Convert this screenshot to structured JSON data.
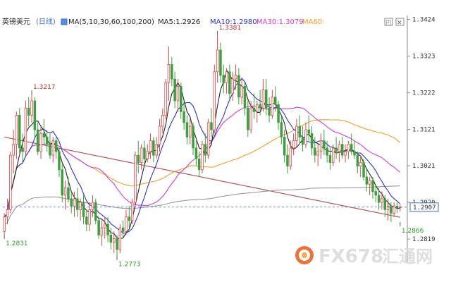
{
  "header": {
    "symbol": "英镑美元",
    "period": "(日线)",
    "indicator": "MA(5,10,30,60,100,200)",
    "ma5": "MA5:1.2926",
    "ma10": "MA10:1.2980",
    "ma30": "MA30:1.3079",
    "ma60": "MA60:"
  },
  "toolbar": {
    "restore_glyph": "◰",
    "close_glyph": "✕"
  },
  "watermark": {
    "brand": "FX678",
    "cn": "汇通网"
  },
  "colors": {
    "up": "#e04848",
    "down": "#3f9f3f",
    "ma5": "#222222",
    "ma10": "#2b35c8",
    "ma30": "#d040d0",
    "ma60": "#f0a030",
    "ma100": "#999999",
    "ma200": "#b05050",
    "dashed": "#3b6bd0",
    "label_high": "#c03030",
    "label_low": "#2f9a2f"
  },
  "chart_data": {
    "type": "candlestick",
    "ylim": [
      1.2755,
      1.3435
    ],
    "yticks": [
      "1.3424",
      "1.3323",
      "1.3222",
      "1.3121",
      "1.3021",
      "1.2920",
      "1.2819"
    ],
    "last_price": "1.2907",
    "annotations": [
      {
        "text": "1.3217",
        "bar": 9,
        "price": 1.3217,
        "kind": "high"
      },
      {
        "text": "1.3381",
        "bar": 70,
        "price": 1.3381,
        "kind": "high"
      },
      {
        "text": "1.2831",
        "bar": 0,
        "price": 1.2831,
        "kind": "low"
      },
      {
        "text": "1.2773",
        "bar": 37,
        "price": 1.2773,
        "kind": "low"
      },
      {
        "text": "1.2866",
        "bar": 130,
        "price": 1.2866,
        "kind": "low"
      }
    ],
    "candles": [
      [
        1.284,
        1.289,
        1.2831,
        1.288
      ],
      [
        1.288,
        1.293,
        1.286,
        1.29
      ],
      [
        1.29,
        1.306,
        1.289,
        1.305
      ],
      [
        1.305,
        1.312,
        1.3,
        1.308
      ],
      [
        1.308,
        1.317,
        1.304,
        1.316
      ],
      [
        1.316,
        1.318,
        1.305,
        1.307
      ],
      [
        1.307,
        1.311,
        1.303,
        1.306
      ],
      [
        1.306,
        1.32,
        1.305,
        1.318
      ],
      [
        1.318,
        1.321,
        1.313,
        1.316
      ],
      [
        1.316,
        1.3217,
        1.314,
        1.32
      ],
      [
        1.32,
        1.321,
        1.31,
        1.312
      ],
      [
        1.312,
        1.314,
        1.305,
        1.306
      ],
      [
        1.306,
        1.313,
        1.304,
        1.311
      ],
      [
        1.311,
        1.315,
        1.308,
        1.31
      ],
      [
        1.31,
        1.312,
        1.306,
        1.308
      ],
      [
        1.308,
        1.311,
        1.304,
        1.305
      ],
      [
        1.305,
        1.31,
        1.303,
        1.309
      ],
      [
        1.309,
        1.31,
        1.304,
        1.306
      ],
      [
        1.306,
        1.307,
        1.299,
        1.301
      ],
      [
        1.301,
        1.303,
        1.292,
        1.294
      ],
      [
        1.294,
        1.298,
        1.29,
        1.296
      ],
      [
        1.296,
        1.299,
        1.292,
        1.293
      ],
      [
        1.293,
        1.295,
        1.289,
        1.291
      ],
      [
        1.291,
        1.295,
        1.288,
        1.293
      ],
      [
        1.293,
        1.296,
        1.288,
        1.29
      ],
      [
        1.29,
        1.293,
        1.287,
        1.292
      ],
      [
        1.292,
        1.294,
        1.286,
        1.288
      ],
      [
        1.288,
        1.29,
        1.284,
        1.286
      ],
      [
        1.286,
        1.292,
        1.284,
        1.29
      ],
      [
        1.29,
        1.294,
        1.288,
        1.292
      ],
      [
        1.292,
        1.293,
        1.286,
        1.287
      ],
      [
        1.287,
        1.288,
        1.282,
        1.283
      ],
      [
        1.283,
        1.287,
        1.28,
        1.285
      ],
      [
        1.285,
        1.288,
        1.282,
        1.286
      ],
      [
        1.286,
        1.288,
        1.281,
        1.283
      ],
      [
        1.283,
        1.285,
        1.279,
        1.281
      ],
      [
        1.281,
        1.284,
        1.278,
        1.282
      ],
      [
        1.282,
        1.283,
        1.2773,
        1.279
      ],
      [
        1.279,
        1.286,
        1.278,
        1.285
      ],
      [
        1.285,
        1.287,
        1.282,
        1.284
      ],
      [
        1.284,
        1.29,
        1.283,
        1.288
      ],
      [
        1.288,
        1.291,
        1.285,
        1.287
      ],
      [
        1.287,
        1.293,
        1.286,
        1.292
      ],
      [
        1.292,
        1.306,
        1.291,
        1.305
      ],
      [
        1.305,
        1.309,
        1.3,
        1.303
      ],
      [
        1.303,
        1.308,
        1.301,
        1.307
      ],
      [
        1.307,
        1.309,
        1.302,
        1.304
      ],
      [
        1.304,
        1.308,
        1.303,
        1.306
      ],
      [
        1.306,
        1.311,
        1.304,
        1.309
      ],
      [
        1.309,
        1.31,
        1.303,
        1.305
      ],
      [
        1.305,
        1.31,
        1.304,
        1.308
      ],
      [
        1.308,
        1.315,
        1.306,
        1.313
      ],
      [
        1.313,
        1.318,
        1.311,
        1.316
      ],
      [
        1.316,
        1.326,
        1.315,
        1.325
      ],
      [
        1.325,
        1.335,
        1.32,
        1.33
      ],
      [
        1.33,
        1.332,
        1.324,
        1.326
      ],
      [
        1.326,
        1.328,
        1.318,
        1.32
      ],
      [
        1.32,
        1.326,
        1.317,
        1.324
      ],
      [
        1.324,
        1.325,
        1.315,
        1.317
      ],
      [
        1.317,
        1.32,
        1.312,
        1.314
      ],
      [
        1.314,
        1.316,
        1.308,
        1.31
      ],
      [
        1.31,
        1.315,
        1.308,
        1.313
      ],
      [
        1.313,
        1.314,
        1.305,
        1.307
      ],
      [
        1.307,
        1.309,
        1.302,
        1.304
      ],
      [
        1.304,
        1.306,
        1.299,
        1.301
      ],
      [
        1.301,
        1.309,
        1.3,
        1.308
      ],
      [
        1.308,
        1.311,
        1.303,
        1.305
      ],
      [
        1.305,
        1.315,
        1.304,
        1.314
      ],
      [
        1.314,
        1.318,
        1.31,
        1.312
      ],
      [
        1.312,
        1.33,
        1.311,
        1.328
      ],
      [
        1.328,
        1.3381,
        1.325,
        1.334
      ],
      [
        1.334,
        1.336,
        1.325,
        1.327
      ],
      [
        1.327,
        1.33,
        1.322,
        1.325
      ],
      [
        1.325,
        1.329,
        1.322,
        1.328
      ],
      [
        1.328,
        1.33,
        1.32,
        1.322
      ],
      [
        1.322,
        1.328,
        1.32,
        1.326
      ],
      [
        1.326,
        1.33,
        1.323,
        1.327
      ],
      [
        1.327,
        1.329,
        1.319,
        1.321
      ],
      [
        1.321,
        1.326,
        1.319,
        1.324
      ],
      [
        1.324,
        1.325,
        1.316,
        1.318
      ],
      [
        1.318,
        1.32,
        1.31,
        1.312
      ],
      [
        1.312,
        1.32,
        1.311,
        1.318
      ],
      [
        1.318,
        1.322,
        1.315,
        1.317
      ],
      [
        1.317,
        1.32,
        1.314,
        1.319
      ],
      [
        1.319,
        1.323,
        1.316,
        1.318
      ],
      [
        1.318,
        1.326,
        1.317,
        1.323
      ],
      [
        1.323,
        1.326,
        1.316,
        1.318
      ],
      [
        1.318,
        1.321,
        1.314,
        1.316
      ],
      [
        1.316,
        1.323,
        1.315,
        1.321
      ],
      [
        1.321,
        1.324,
        1.317,
        1.319
      ],
      [
        1.319,
        1.32,
        1.312,
        1.314
      ],
      [
        1.314,
        1.316,
        1.308,
        1.31
      ],
      [
        1.31,
        1.312,
        1.303,
        1.305
      ],
      [
        1.305,
        1.308,
        1.3,
        1.302
      ],
      [
        1.302,
        1.309,
        1.301,
        1.307
      ],
      [
        1.307,
        1.311,
        1.305,
        1.309
      ],
      [
        1.309,
        1.315,
        1.307,
        1.313
      ],
      [
        1.313,
        1.316,
        1.308,
        1.31
      ],
      [
        1.31,
        1.313,
        1.306,
        1.308
      ],
      [
        1.308,
        1.314,
        1.307,
        1.312
      ],
      [
        1.312,
        1.316,
        1.309,
        1.311
      ],
      [
        1.311,
        1.313,
        1.305,
        1.307
      ],
      [
        1.307,
        1.31,
        1.303,
        1.305
      ],
      [
        1.305,
        1.308,
        1.302,
        1.306
      ],
      [
        1.306,
        1.311,
        1.304,
        1.309
      ],
      [
        1.309,
        1.312,
        1.305,
        1.307
      ],
      [
        1.307,
        1.309,
        1.303,
        1.305
      ],
      [
        1.305,
        1.307,
        1.301,
        1.303
      ],
      [
        1.303,
        1.308,
        1.302,
        1.307
      ],
      [
        1.307,
        1.31,
        1.304,
        1.306
      ],
      [
        1.306,
        1.309,
        1.303,
        1.308
      ],
      [
        1.308,
        1.31,
        1.304,
        1.305
      ],
      [
        1.305,
        1.308,
        1.303,
        1.306
      ],
      [
        1.306,
        1.309,
        1.304,
        1.308
      ],
      [
        1.308,
        1.311,
        1.305,
        1.306
      ],
      [
        1.306,
        1.309,
        1.304,
        1.305
      ],
      [
        1.305,
        1.306,
        1.3,
        1.302
      ],
      [
        1.302,
        1.305,
        1.299,
        1.303
      ],
      [
        1.303,
        1.304,
        1.298,
        1.299
      ],
      [
        1.299,
        1.301,
        1.295,
        1.297
      ],
      [
        1.297,
        1.299,
        1.294,
        1.298
      ],
      [
        1.298,
        1.299,
        1.293,
        1.295
      ],
      [
        1.295,
        1.297,
        1.292,
        1.294
      ],
      [
        1.294,
        1.296,
        1.29,
        1.292
      ],
      [
        1.292,
        1.295,
        1.29,
        1.293
      ],
      [
        1.293,
        1.294,
        1.288,
        1.29
      ],
      [
        1.29,
        1.293,
        1.287,
        1.291
      ],
      [
        1.291,
        1.292,
        1.2866,
        1.289
      ],
      [
        1.289,
        1.292,
        1.288,
        1.291
      ],
      [
        1.291,
        1.292,
        1.289,
        1.2905
      ],
      [
        1.2905,
        1.2915,
        1.2895,
        1.2907
      ]
    ]
  }
}
